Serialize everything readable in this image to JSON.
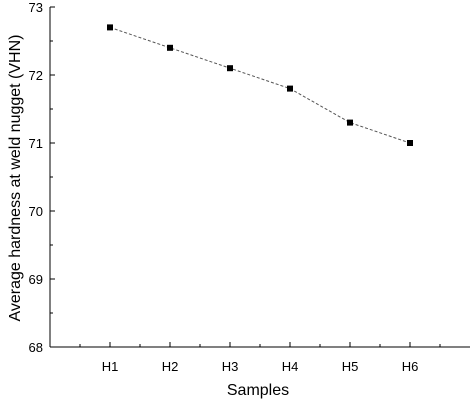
{
  "chart_data": {
    "type": "line",
    "categories": [
      "H1",
      "H2",
      "H3",
      "H4",
      "H5",
      "H6"
    ],
    "series": [
      {
        "values": [
          72.7,
          72.4,
          72.1,
          71.8,
          71.3,
          71.0
        ]
      }
    ],
    "xlabel": "Samples",
    "ylabel": "Average hardness at weld nugget (VHN)",
    "ylim": [
      68,
      73
    ],
    "yticks": [
      "68",
      "69",
      "70",
      "71",
      "72",
      "73"
    ],
    "grid": false,
    "legend": "none",
    "line_style": "dashed",
    "marker": "square",
    "colors": {
      "line": "#555555",
      "marker": "#000000",
      "axis": "#000000"
    }
  }
}
